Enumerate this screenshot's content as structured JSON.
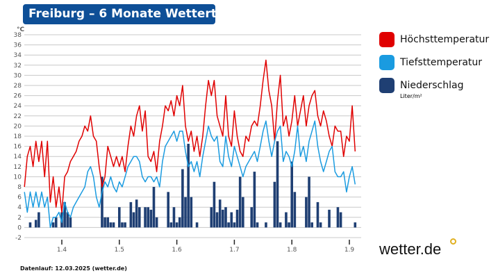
{
  "title": "Freiburg – 6 Monate Wettertrend",
  "legend": {
    "high": "Höchsttemperatur",
    "low": "Tiefsttemperatur",
    "rain": "Niederschlag",
    "rain_unit": "Liter/m²"
  },
  "footer": "Datenlauf: 12.03.2025 (wetter.de)",
  "logo": "wetter.de",
  "colors": {
    "high": "#e00000",
    "low": "#1a9be0",
    "rain": "#1f3f73",
    "title_bg": "#0e4f97"
  },
  "chart_data": {
    "type": "line",
    "ylabel": "°C",
    "ylim": [
      -2,
      38
    ],
    "yticks": [
      -2,
      0,
      2,
      4,
      6,
      8,
      10,
      12,
      14,
      16,
      18,
      20,
      22,
      24,
      26,
      28,
      30,
      32,
      34,
      36,
      38
    ],
    "xlim": [
      1.335,
      1.915
    ],
    "xticks": [
      "1.4",
      "1.5",
      "1.6",
      "1.7",
      "1.8",
      "1.9"
    ],
    "grid": true,
    "legend_position": "right",
    "x": [
      1.335,
      1.34,
      1.345,
      1.35,
      1.355,
      1.36,
      1.365,
      1.37,
      1.375,
      1.38,
      1.385,
      1.39,
      1.395,
      1.4,
      1.405,
      1.41,
      1.415,
      1.42,
      1.425,
      1.43,
      1.435,
      1.44,
      1.445,
      1.45,
      1.455,
      1.46,
      1.465,
      1.47,
      1.475,
      1.48,
      1.485,
      1.49,
      1.495,
      1.5,
      1.505,
      1.51,
      1.515,
      1.52,
      1.525,
      1.53,
      1.535,
      1.54,
      1.545,
      1.55,
      1.555,
      1.56,
      1.565,
      1.57,
      1.575,
      1.58,
      1.585,
      1.59,
      1.595,
      1.6,
      1.605,
      1.61,
      1.615,
      1.62,
      1.625,
      1.63,
      1.635,
      1.64,
      1.645,
      1.65,
      1.655,
      1.66,
      1.665,
      1.67,
      1.675,
      1.68,
      1.685,
      1.69,
      1.695,
      1.7,
      1.705,
      1.71,
      1.715,
      1.72,
      1.725,
      1.73,
      1.735,
      1.74,
      1.745,
      1.75,
      1.755,
      1.76,
      1.765,
      1.77,
      1.775,
      1.78,
      1.785,
      1.79,
      1.795,
      1.8,
      1.805,
      1.81,
      1.815,
      1.82,
      1.825,
      1.83,
      1.835,
      1.84,
      1.845,
      1.85,
      1.855,
      1.86,
      1.865,
      1.87,
      1.875,
      1.88,
      1.885,
      1.89,
      1.895,
      1.9,
      1.905,
      1.91
    ],
    "series": [
      {
        "name": "Höchsttemperatur",
        "values": [
          8,
          14,
          16,
          12,
          17,
          13,
          17,
          10,
          17,
          5,
          10,
          4,
          8,
          3,
          10,
          11,
          13,
          14,
          15,
          17,
          18,
          20,
          19,
          22,
          18,
          17,
          12,
          8,
          10,
          16,
          14,
          12,
          14,
          12,
          14,
          11,
          16,
          20,
          18,
          22,
          24,
          19,
          23,
          14,
          13,
          15,
          11,
          17,
          20,
          24,
          23,
          25,
          22,
          26,
          24,
          28,
          20,
          17,
          19,
          15,
          18,
          14,
          18,
          24,
          29,
          26,
          29,
          22,
          20,
          18,
          26,
          18,
          16,
          23,
          18,
          15,
          14,
          18,
          17,
          20,
          21,
          20,
          24,
          29,
          33,
          27,
          24,
          17,
          25,
          30,
          20,
          22,
          18,
          21,
          26,
          20,
          23,
          26,
          20,
          24,
          26,
          27,
          22,
          20,
          23,
          21,
          18,
          16,
          20,
          19,
          19,
          14,
          18,
          17,
          24,
          15
        ]
      },
      {
        "name": "Tiefsttemperatur",
        "values": [
          7,
          3,
          7,
          4,
          7,
          4,
          7,
          4,
          6,
          0,
          2,
          2,
          3,
          1,
          5,
          3,
          2,
          4,
          5,
          6,
          7,
          8,
          11,
          12,
          10,
          6,
          4,
          7,
          9,
          8,
          10,
          8,
          7,
          9,
          8,
          10,
          12,
          13,
          14,
          14,
          13,
          10,
          9,
          10,
          10,
          9,
          10,
          8,
          13,
          16,
          17,
          18,
          19,
          17,
          19,
          19,
          15,
          12,
          13,
          11,
          13,
          10,
          14,
          17,
          20,
          18,
          17,
          18,
          13,
          12,
          18,
          14,
          12,
          16,
          14,
          12,
          10,
          12,
          13,
          14,
          15,
          13,
          16,
          19,
          21,
          17,
          14,
          17,
          19,
          20,
          13,
          15,
          14,
          12,
          15,
          20,
          14,
          16,
          13,
          17,
          19,
          21,
          16,
          13,
          11,
          13,
          15,
          16,
          11,
          10,
          10,
          11,
          7,
          10,
          12,
          8.5
        ]
      }
    ],
    "bars": {
      "name": "Niederschlag",
      "unit": "Liter/m²",
      "x": [
        1.345,
        1.355,
        1.36,
        1.385,
        1.39,
        1.4,
        1.405,
        1.41,
        1.415,
        1.47,
        1.475,
        1.48,
        1.485,
        1.49,
        1.5,
        1.505,
        1.51,
        1.52,
        1.525,
        1.53,
        1.535,
        1.545,
        1.55,
        1.555,
        1.56,
        1.565,
        1.585,
        1.59,
        1.595,
        1.6,
        1.605,
        1.61,
        1.615,
        1.62,
        1.625,
        1.635,
        1.66,
        1.665,
        1.67,
        1.675,
        1.68,
        1.685,
        1.69,
        1.695,
        1.7,
        1.705,
        1.71,
        1.715,
        1.73,
        1.735,
        1.74,
        1.755,
        1.77,
        1.775,
        1.78,
        1.79,
        1.795,
        1.8,
        1.805,
        1.825,
        1.83,
        1.835,
        1.845,
        1.85,
        1.865,
        1.88,
        1.885,
        1.91
      ],
      "values": [
        1,
        1.5,
        3,
        1,
        2,
        3,
        5,
        3,
        2,
        10,
        2,
        2,
        1,
        1,
        4,
        1,
        1,
        5,
        3,
        5.5,
        4,
        4,
        4,
        3.5,
        8,
        2,
        7,
        1,
        4,
        1,
        2,
        11.5,
        6,
        16.5,
        6,
        1,
        4,
        9,
        3,
        5.5,
        3.5,
        4,
        1,
        3,
        1,
        3.5,
        10,
        6,
        4,
        11,
        1,
        1,
        9,
        17,
        1,
        3,
        1,
        13,
        7,
        6,
        10,
        1,
        5,
        1,
        3.5,
        4,
        3,
        1
      ]
    }
  }
}
